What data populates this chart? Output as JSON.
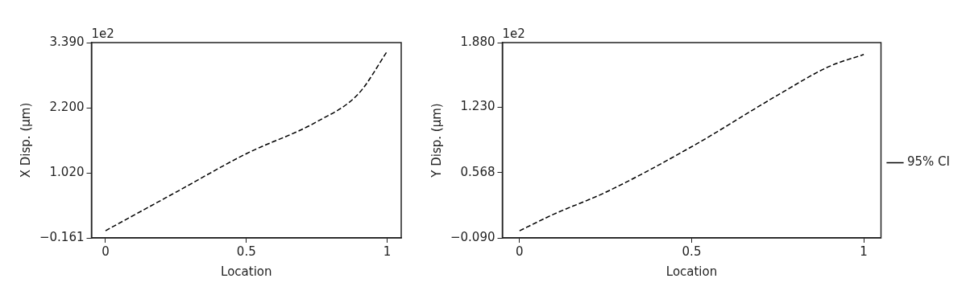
{
  "chart_data": [
    {
      "type": "line",
      "xlabel": "Location",
      "ylabel": "X Disp. (μm)",
      "annotations": [
        "1e2"
      ],
      "series": [
        {
          "color": "#000000",
          "x": [
            0,
            0.1,
            0.25,
            0.5,
            0.75,
            0.9,
            1
          ],
          "values": [
            -0.03,
            0.25,
            0.67,
            1.37,
            1.95,
            2.47,
            3.23
          ]
        }
      ],
      "xlim": [
        -0.05,
        1.05
      ],
      "xticks": [
        0,
        0.5,
        1
      ],
      "ylim": [
        -0.161,
        3.39
      ],
      "yticks": [
        {
          "value": -0.161,
          "label": "−0.161"
        },
        {
          "value": 1.02,
          "label": "1.020"
        },
        {
          "value": 2.2,
          "label": "2.200"
        },
        {
          "value": 3.39,
          "label": "3.390"
        }
      ],
      "grid": false,
      "line_style": "dashed",
      "marker": "none",
      "legend": false
    },
    {
      "type": "line",
      "xlabel": "Location",
      "ylabel": "Y Disp. (μm)",
      "annotations": [
        "1e2"
      ],
      "series": [
        {
          "name": "95% CI",
          "color": "#000000",
          "x": [
            0,
            0.1,
            0.25,
            0.5,
            0.75,
            0.9,
            1
          ],
          "values": [
            -0.018,
            0.15,
            0.37,
            0.83,
            1.35,
            1.64,
            1.76
          ]
        }
      ],
      "xlim": [
        -0.05,
        1.05
      ],
      "xticks": [
        0,
        0.5,
        1
      ],
      "ylim": [
        -0.09,
        1.88
      ],
      "yticks": [
        {
          "value": -0.09,
          "label": "−0.090"
        },
        {
          "value": 0.568,
          "label": "0.568"
        },
        {
          "value": 1.23,
          "label": "1.230"
        },
        {
          "value": 1.88,
          "label": "1.880"
        }
      ],
      "grid": false,
      "line_style": "dashed",
      "marker": "none",
      "legend": "right"
    }
  ]
}
